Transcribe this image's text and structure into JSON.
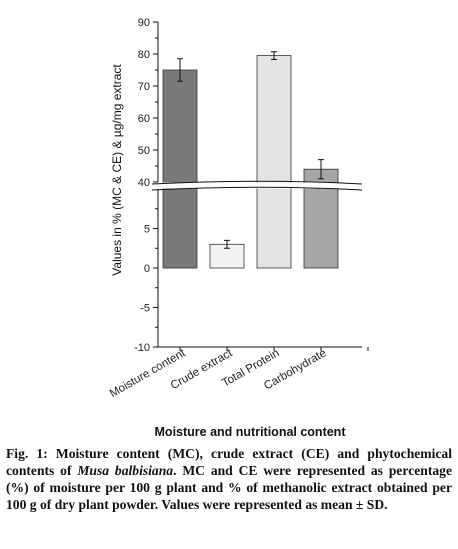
{
  "chart_data": {
    "type": "bar",
    "categories": [
      "Moisture content",
      "Crude extract",
      "Total Protein",
      "Carbohydrate"
    ],
    "values": [
      75,
      3,
      79.5,
      44
    ],
    "errors": [
      3.5,
      0.5,
      1.2,
      3
    ],
    "colors": [
      "#7a7a7a",
      "#f2f2f2",
      "#e4e4e4",
      "#a6a6a6"
    ],
    "title": "",
    "xlabel": "Moisture and nutritional content",
    "ylabel": "Values in % (MC & CE) & µg/mg extract",
    "ylim": [
      -10,
      90
    ],
    "axis_break": [
      10,
      40
    ],
    "y_ticks_upper": [
      40,
      50,
      60,
      70,
      80,
      90
    ],
    "y_ticks_lower": [
      -10,
      -5,
      0,
      5
    ],
    "grid": false,
    "legend": "none"
  },
  "caption": {
    "label": "Fig. 1:",
    "part1": "Moisture content (MC), crude extract (CE) and phytochemical contents of",
    "species": "Musa balbisiana",
    "part2": ". MC and CE were represented as percentage (%) of moisture per 100 g plant and % of methanolic extract obtained per 100 g of dry plant powder. Values were represented as mean ± SD."
  }
}
